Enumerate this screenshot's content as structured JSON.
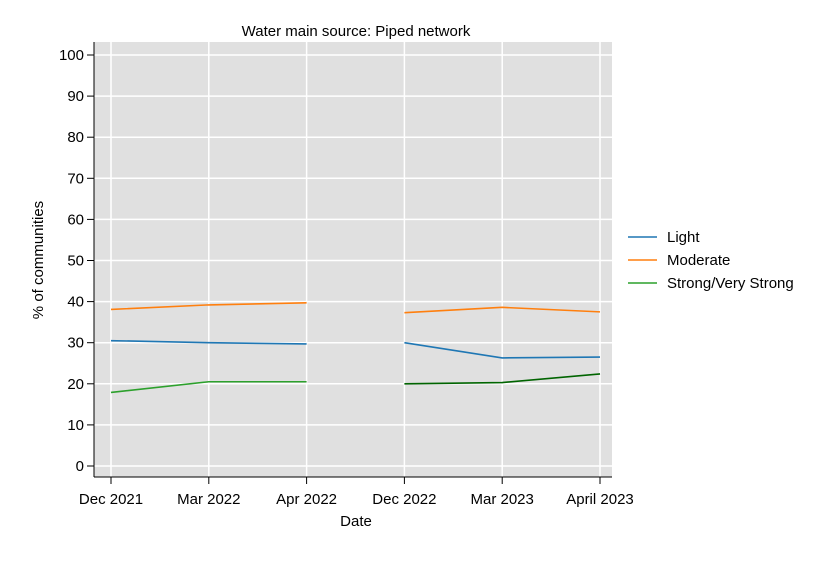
{
  "chart_data": {
    "type": "line",
    "title": "Water main source: Piped network",
    "xlabel": "Date",
    "ylabel": "% of communities",
    "categories": [
      "Dec 2021",
      "Mar 2022",
      "Apr 2022",
      "Dec 2022",
      "Mar 2023",
      "April 2023"
    ],
    "ylim": [
      0,
      100
    ],
    "yticks": [
      0,
      10,
      20,
      30,
      40,
      50,
      60,
      70,
      80,
      90,
      100
    ],
    "grid": true,
    "legend_position": "right",
    "series": [
      {
        "name": "Light",
        "color": "#1f77b4",
        "values": [
          30.5,
          30.0,
          29.7,
          30.0,
          26.3,
          26.5
        ]
      },
      {
        "name": "Moderate",
        "color": "#ff7f0e",
        "values": [
          38.1,
          39.2,
          39.7,
          37.3,
          38.6,
          37.5
        ]
      },
      {
        "name": "Strong/Very Strong",
        "color": "#2ca02c",
        "color_alt": "#006400",
        "values": [
          17.9,
          20.5,
          20.5,
          20.0,
          20.3,
          22.4
        ]
      }
    ],
    "segments": [
      [
        0,
        2
      ],
      [
        3,
        5
      ]
    ]
  }
}
